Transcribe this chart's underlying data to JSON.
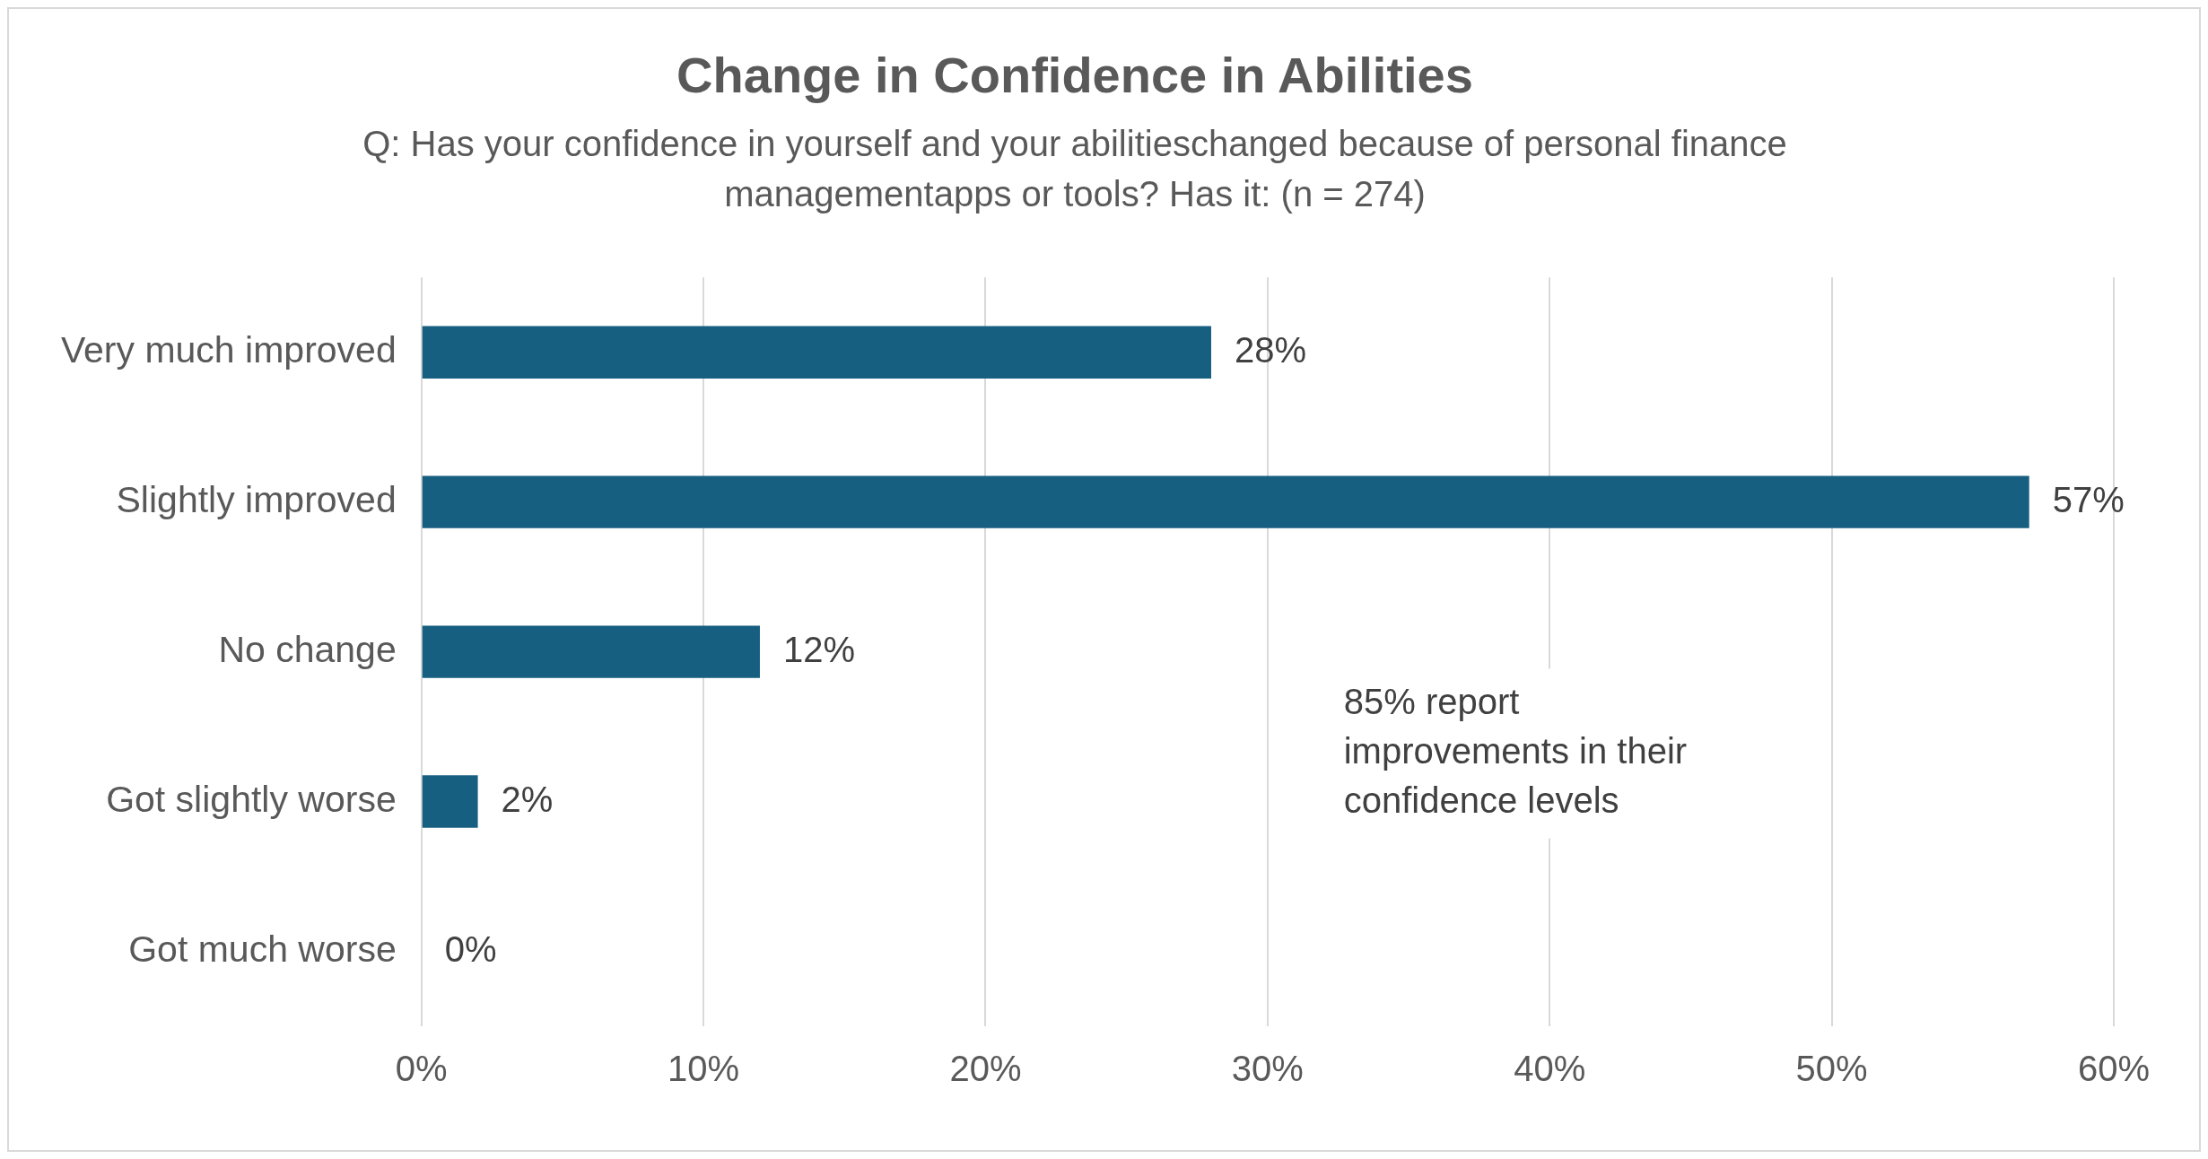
{
  "chart_data": {
    "type": "bar",
    "title": "Change in Confidence in Abilities",
    "subtitle": "Q: Has your confidence in yourself and your abilitieschanged because of personal finance managementapps or tools? Has it: (n = 274)",
    "categories": [
      "Very much improved",
      "Slightly improved",
      "No change",
      "Got slightly worse",
      "Got much worse"
    ],
    "values": [
      28,
      57,
      12,
      2,
      0
    ],
    "color": "#175f80",
    "orientation": "horizontal",
    "xlim": [
      0,
      60
    ],
    "xticks": [
      {
        "value": 0,
        "label": "0%"
      },
      {
        "value": 10,
        "label": "10%"
      },
      {
        "value": 20,
        "label": "20%"
      },
      {
        "value": 30,
        "label": "30%"
      },
      {
        "value": 40,
        "label": "40%"
      },
      {
        "value": 50,
        "label": "50%"
      },
      {
        "value": 60,
        "label": "60%"
      }
    ],
    "grid": "x",
    "value_labels": [
      "28%",
      "57%",
      "12%",
      "2%",
      "0%"
    ],
    "annotations": [
      "85% report improvements in their confidence levels"
    ]
  }
}
